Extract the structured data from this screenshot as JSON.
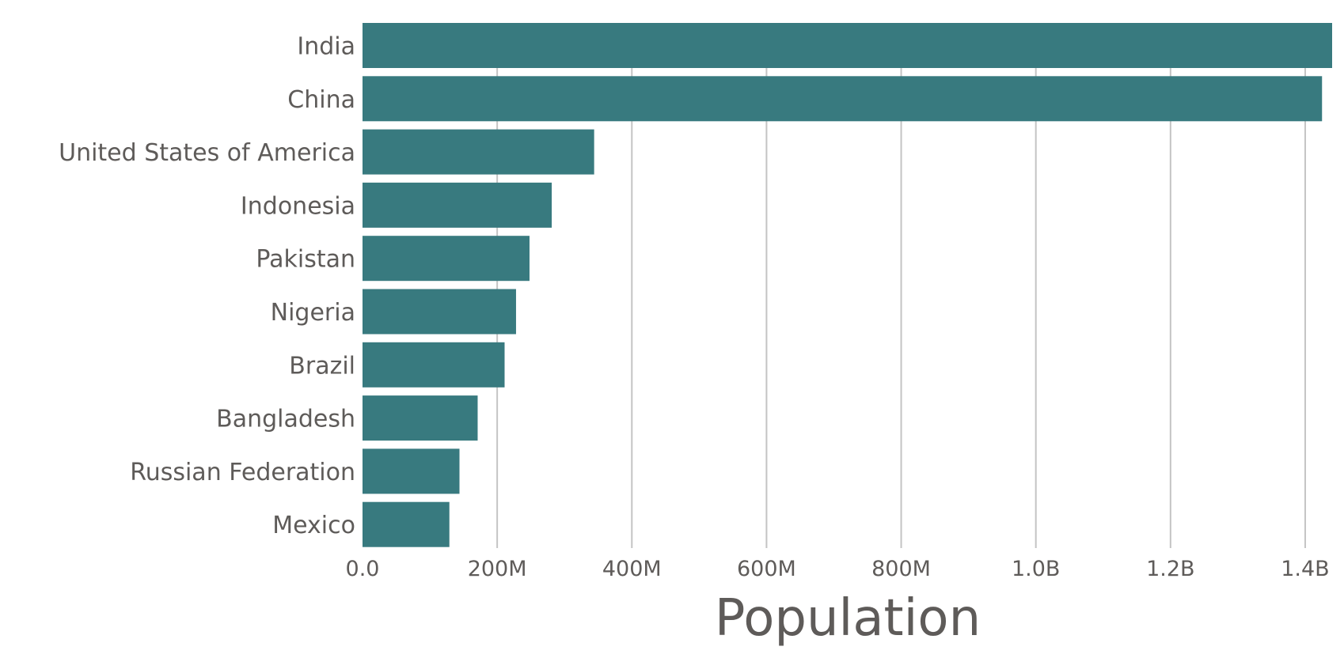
{
  "chart_data": {
    "type": "bar",
    "orientation": "horizontal",
    "categories": [
      "India",
      "China",
      "United States of America",
      "Indonesia",
      "Pakistan",
      "Nigeria",
      "Brazil",
      "Bangladesh",
      "Russian Federation",
      "Mexico"
    ],
    "values": [
      1440000000,
      1425000000,
      344000000,
      281000000,
      248000000,
      228000000,
      211000000,
      171000000,
      144000000,
      129000000
    ],
    "xlabel": "Population",
    "ylabel": "",
    "xlim": [
      0,
      1440000000
    ],
    "x_ticks": [
      0,
      200000000,
      400000000,
      600000000,
      800000000,
      1000000000,
      1200000000,
      1400000000
    ],
    "x_tick_labels": [
      "0.0",
      "200M",
      "400M",
      "600M",
      "800M",
      "1.0B",
      "1.2B",
      "1.4B"
    ],
    "grid": "vertical",
    "legend": "none",
    "bar_color": "#387a7f",
    "grid_color": "#c4c4c4",
    "text_color": "#5e5b59"
  }
}
